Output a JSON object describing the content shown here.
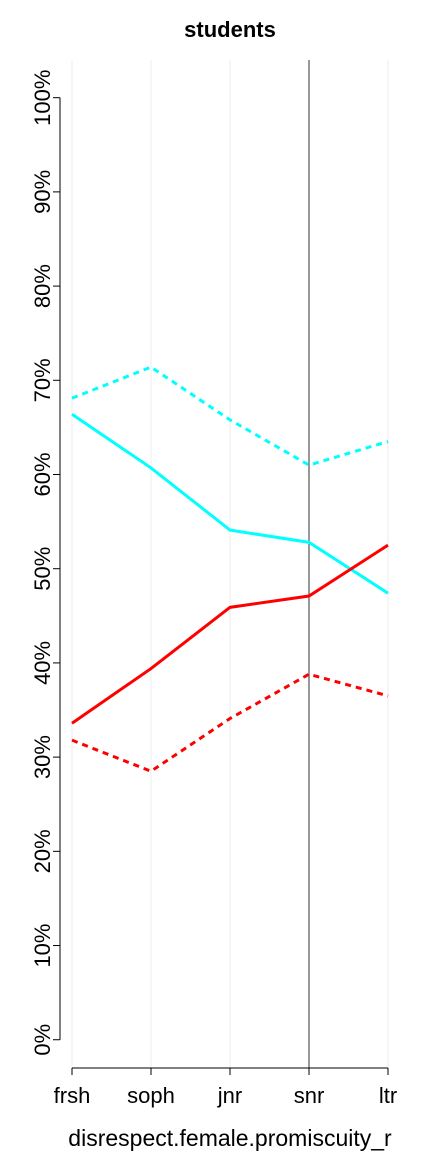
{
  "chart_data": {
    "type": "line",
    "title": "students",
    "x_label": "disrespect.female.promiscuity_r",
    "categories": [
      "frsh",
      "soph",
      "jnr",
      "snr",
      "ltr"
    ],
    "series": [
      {
        "color": "#00ffff",
        "dashed": false,
        "values": [
          66.4,
          60.7,
          54.1,
          52.8,
          47.4
        ]
      },
      {
        "color": "#00ffff",
        "dashed": true,
        "values": [
          68.1,
          71.4,
          65.8,
          61.0,
          63.5
        ]
      },
      {
        "color": "#ff0000",
        "dashed": false,
        "values": [
          33.6,
          39.4,
          45.9,
          47.1,
          52.5
        ]
      },
      {
        "color": "#ff0000",
        "dashed": true,
        "values": [
          31.8,
          28.5,
          34.1,
          38.8,
          36.5
        ]
      }
    ],
    "ylim": [
      -3,
      104
    ],
    "yticks": [
      {
        "value": 0,
        "label": "0%"
      },
      {
        "value": 10,
        "label": "10%"
      },
      {
        "value": 20,
        "label": "20%"
      },
      {
        "value": 30,
        "label": "30%"
      },
      {
        "value": 40,
        "label": "40%"
      },
      {
        "value": 50,
        "label": "50%"
      },
      {
        "value": 60,
        "label": "60%"
      },
      {
        "value": 70,
        "label": "70%"
      },
      {
        "value": 80,
        "label": "80%"
      },
      {
        "value": 90,
        "label": "90%"
      },
      {
        "value": 100,
        "label": "100%"
      }
    ],
    "grid": true,
    "highlight_category": "snr"
  }
}
